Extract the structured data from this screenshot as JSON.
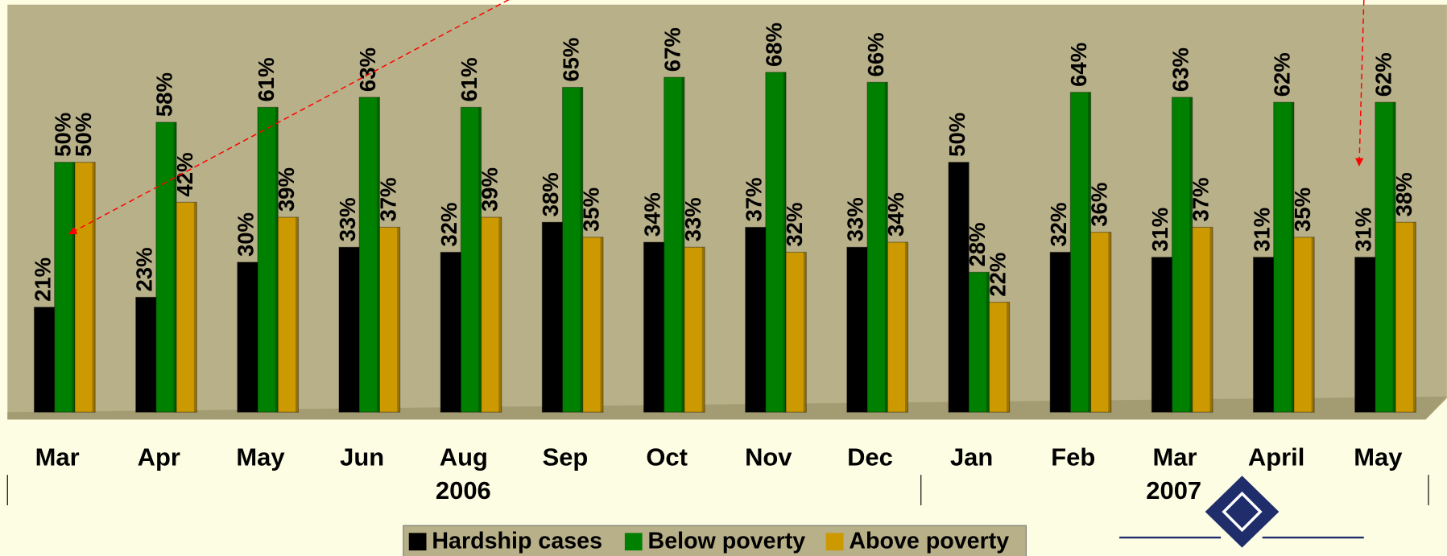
{
  "chart_data": {
    "type": "bar",
    "categories": [
      "Mar",
      "Apr",
      "May",
      "Jun",
      "Aug",
      "Sep",
      "Oct",
      "Nov",
      "Dec",
      "Jan",
      "Feb",
      "Mar",
      "April",
      "May"
    ],
    "group_labels": [
      "2006",
      "2007"
    ],
    "series": [
      {
        "name": "Hardship cases",
        "color": "#000000",
        "values": [
          21,
          23,
          30,
          33,
          32,
          38,
          34,
          37,
          33,
          50,
          32,
          31,
          31,
          31
        ],
        "value_labels": [
          "21%",
          "23%",
          "30%",
          "33%",
          "32%",
          "38%",
          "34%",
          "37%",
          "33%",
          "50%",
          "32%",
          "31%",
          "31%",
          "31%"
        ]
      },
      {
        "name": "Below poverty",
        "color": "#008000",
        "values": [
          50,
          58,
          61,
          63,
          61,
          65,
          67,
          68,
          66,
          28,
          64,
          63,
          62,
          62
        ],
        "value_labels": [
          "50%",
          "58%",
          "61%",
          "63%",
          "61%",
          "65%",
          "67%",
          "68%",
          "66%",
          "28%",
          "64%",
          "63%",
          "62%",
          "62%"
        ]
      },
      {
        "name": "Above poverty",
        "color": "#cc9900",
        "values": [
          50,
          42,
          39,
          37,
          39,
          35,
          33,
          32,
          34,
          22,
          36,
          37,
          35,
          38
        ],
        "value_labels": [
          "50%",
          "42%",
          "39%",
          "37%",
          "39%",
          "35%",
          "33%",
          "32%",
          "34%",
          "22%",
          "36%",
          "37%",
          "35%",
          "38%"
        ]
      }
    ],
    "ylim": [
      0,
      80
    ],
    "legend": "bottom"
  }
}
